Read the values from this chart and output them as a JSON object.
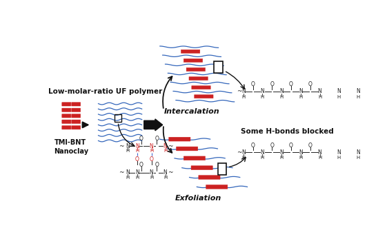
{
  "bg_color": "#ffffff",
  "label_tmi": "TMI-BNT\nNanoclay",
  "label_polymer": "Low-molar-ratio UF polymer",
  "label_intercalation": "Intercalation",
  "label_exfoliation": "Exfoliation",
  "label_hbonds": "Some H-bonds blocked",
  "clay_color": "#cc2222",
  "blue": "#3366bb",
  "black": "#111111",
  "red": "#cc2222",
  "dark": "#222222"
}
